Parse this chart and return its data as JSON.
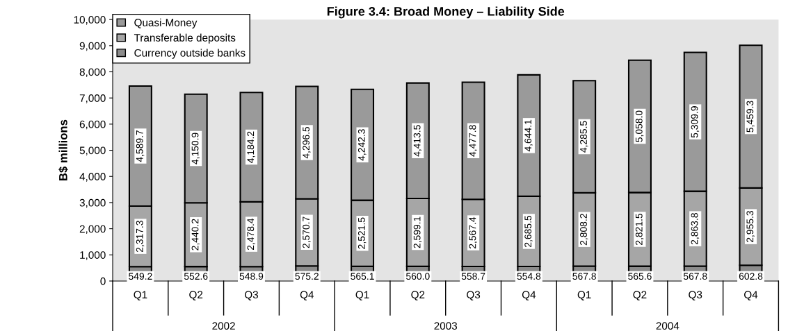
{
  "chart_data": {
    "type": "bar",
    "stacked": true,
    "title": "Figure 3.4: Broad Money – Liability Side",
    "ylabel": "B$ millions",
    "categories": [
      "Q1",
      "Q2",
      "Q3",
      "Q4",
      "Q1",
      "Q2",
      "Q3",
      "Q4",
      "Q1",
      "Q2",
      "Q3",
      "Q4"
    ],
    "series": [
      {
        "name": "Currency outside banks",
        "color": "#8c8c8c",
        "values": [
          549.2,
          552.6,
          548.9,
          575.2,
          565.1,
          560.0,
          558.7,
          554.8,
          567.8,
          565.6,
          567.8,
          602.8
        ],
        "value_labels": [
          "549.2",
          "552.6",
          "548.9",
          "575.2",
          "565.1",
          "560.0",
          "558.7",
          "554.8",
          "567.8",
          "565.6",
          "567.8",
          "602.8"
        ]
      },
      {
        "name": "Transferable deposits",
        "color": "#a6a6a6",
        "values": [
          2317.3,
          2440.2,
          2478.4,
          2570.7,
          2521.5,
          2599.1,
          2567.4,
          2685.5,
          2808.2,
          2821.5,
          2863.8,
          2955.3
        ],
        "value_labels": [
          "2,317.3",
          "2,440.2",
          "2,478.4",
          "2,570.7",
          "2,521.5",
          "2,599.1",
          "2,567.4",
          "2,685.5",
          "2,808.2",
          "2,821.5",
          "2,863.8",
          "2,955.3"
        ]
      },
      {
        "name": "Quasi-Money",
        "color": "#9a9a9a",
        "values": [
          4589.7,
          4150.9,
          4184.2,
          4296.5,
          4242.3,
          4413.5,
          4477.8,
          4644.1,
          4285.5,
          5058.0,
          5309.9,
          5459.3
        ],
        "value_labels": [
          "4,589.7",
          "4,150.9",
          "4,184.2",
          "4,296.5",
          "4,242.3",
          "4,413.5",
          "4,477.8",
          "4,644.1",
          "4,285.5",
          "5,058.0",
          "5,309.9",
          "5,459.3"
        ]
      }
    ],
    "legend": "top left",
    "grid": false,
    "ylim": [
      0,
      10000
    ],
    "yticks": [
      0,
      {
        "value": 1000,
        "label": "1,000"
      },
      {
        "value": 2000,
        "label": "2,000"
      },
      {
        "value": 3000,
        "label": "3,000"
      },
      {
        "value": 4000,
        "label": "4,000"
      },
      {
        "value": 5000,
        "label": "5,000"
      },
      {
        "value": 6000,
        "label": "6,000"
      },
      {
        "value": 7000,
        "label": "7,000"
      },
      {
        "value": 8000,
        "label": "8,000"
      },
      {
        "value": 9000,
        "label": "9,000"
      },
      {
        "value": 10000,
        "label": "10,000"
      }
    ],
    "annotations": [
      "2002",
      "2003",
      "2004"
    ]
  }
}
